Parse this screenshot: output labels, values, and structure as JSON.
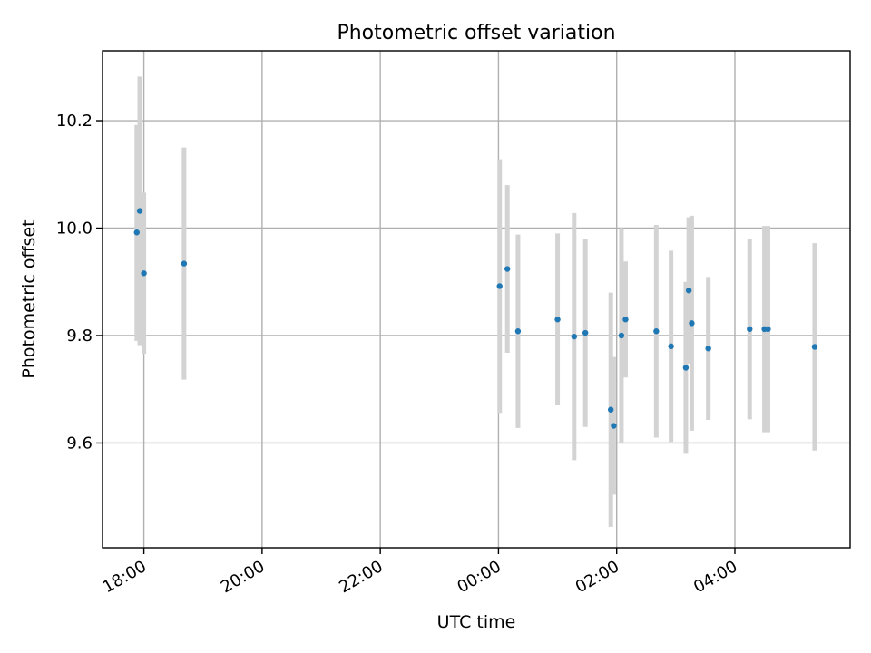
{
  "chart_data": {
    "type": "scatter",
    "title": "Photometric offset variation",
    "xlabel": "UTC time",
    "ylabel": "Photometric offset",
    "x_unit": "hours relative to 00:00 UTC",
    "xlim": [
      -6.7,
      5.95
    ],
    "ylim": [
      9.405,
      10.33
    ],
    "grid": true,
    "xticks": [
      {
        "value": -6,
        "label": "18:00"
      },
      {
        "value": -4,
        "label": "20:00"
      },
      {
        "value": -2,
        "label": "22:00"
      },
      {
        "value": 0,
        "label": "00:00"
      },
      {
        "value": 2,
        "label": "02:00"
      },
      {
        "value": 4,
        "label": "04:00"
      }
    ],
    "yticks": [
      {
        "value": 9.6,
        "label": "9.6"
      },
      {
        "value": 9.8,
        "label": "9.8"
      },
      {
        "value": 10.0,
        "label": "10.0"
      },
      {
        "value": 10.2,
        "label": "10.2"
      }
    ],
    "colors": {
      "point": "#1f77b4",
      "errorbar": "#d3d3d3",
      "grid": "#b0b0b0"
    },
    "points": [
      {
        "x": -6.12,
        "y": 9.992,
        "ylow": 9.79,
        "yhigh": 10.192
      },
      {
        "x": -6.07,
        "y": 10.032,
        "ylow": 9.782,
        "yhigh": 10.282
      },
      {
        "x": -6.0,
        "y": 9.916,
        "ylow": 9.766,
        "yhigh": 10.066
      },
      {
        "x": -5.32,
        "y": 9.934,
        "ylow": 9.718,
        "yhigh": 10.15
      },
      {
        "x": 0.02,
        "y": 9.892,
        "ylow": 9.656,
        "yhigh": 10.128
      },
      {
        "x": 0.15,
        "y": 9.924,
        "ylow": 9.768,
        "yhigh": 10.08
      },
      {
        "x": 0.33,
        "y": 9.808,
        "ylow": 9.628,
        "yhigh": 9.988
      },
      {
        "x": 1.0,
        "y": 9.83,
        "ylow": 9.67,
        "yhigh": 9.99
      },
      {
        "x": 1.28,
        "y": 9.798,
        "ylow": 9.568,
        "yhigh": 10.028
      },
      {
        "x": 1.47,
        "y": 9.805,
        "ylow": 9.63,
        "yhigh": 9.98
      },
      {
        "x": 1.9,
        "y": 9.662,
        "ylow": 9.444,
        "yhigh": 9.88
      },
      {
        "x": 1.95,
        "y": 9.632,
        "ylow": 9.504,
        "yhigh": 9.76
      },
      {
        "x": 2.08,
        "y": 9.8,
        "ylow": 9.6,
        "yhigh": 10.0
      },
      {
        "x": 2.15,
        "y": 9.83,
        "ylow": 9.722,
        "yhigh": 9.938
      },
      {
        "x": 2.67,
        "y": 9.808,
        "ylow": 9.61,
        "yhigh": 10.006
      },
      {
        "x": 2.92,
        "y": 9.78,
        "ylow": 9.602,
        "yhigh": 9.958
      },
      {
        "x": 3.17,
        "y": 9.74,
        "ylow": 9.58,
        "yhigh": 9.9
      },
      {
        "x": 3.22,
        "y": 9.884,
        "ylow": 9.748,
        "yhigh": 10.02
      },
      {
        "x": 3.27,
        "y": 9.823,
        "ylow": 9.623,
        "yhigh": 10.023
      },
      {
        "x": 3.55,
        "y": 9.776,
        "ylow": 9.643,
        "yhigh": 9.909
      },
      {
        "x": 4.25,
        "y": 9.812,
        "ylow": 9.644,
        "yhigh": 9.98
      },
      {
        "x": 4.5,
        "y": 9.812,
        "ylow": 9.62,
        "yhigh": 10.004
      },
      {
        "x": 4.56,
        "y": 9.812,
        "ylow": 9.62,
        "yhigh": 10.004
      },
      {
        "x": 5.35,
        "y": 9.779,
        "ylow": 9.586,
        "yhigh": 9.972
      }
    ]
  }
}
